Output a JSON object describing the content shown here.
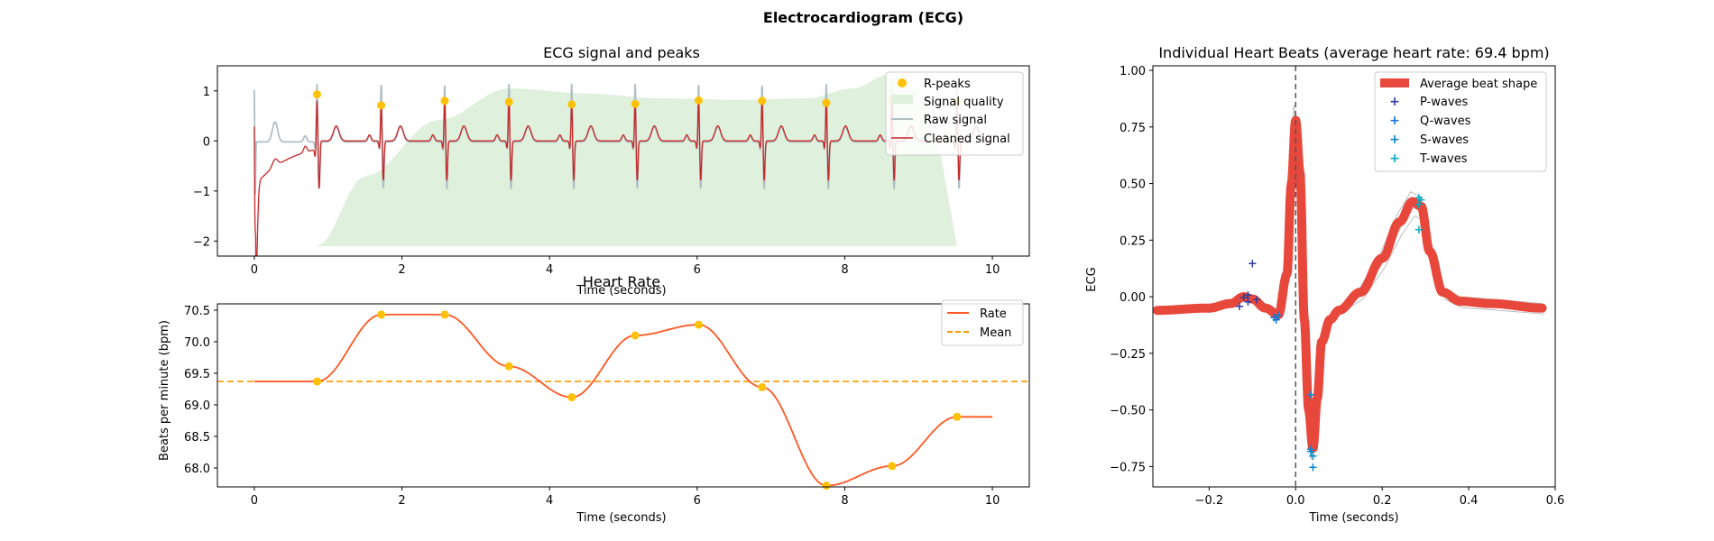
{
  "figure": {
    "suptitle": "Electrocardiogram (ECG)"
  },
  "chart_data": [
    {
      "type": "line",
      "title": "ECG signal and peaks",
      "xlabel": "Time (seconds)",
      "ylabel": "",
      "xlim": [
        -0.5,
        10.5
      ],
      "ylim": [
        -2.3,
        1.5
      ],
      "xticks": [
        0,
        2,
        4,
        6,
        8,
        10
      ],
      "yticks": [
        -2,
        -1,
        0,
        1
      ],
      "legend_position": "top-right",
      "legend": [
        "R-peaks",
        "Signal quality",
        "Raw signal",
        "Cleaned signal"
      ],
      "colors": {
        "rpeaks": "#FFC107",
        "quality": "#DFF0DC",
        "raw": "#B0BEC5",
        "cleaned": "#C62828"
      },
      "r_peaks": {
        "x": [
          0.85,
          1.72,
          2.58,
          3.45,
          4.3,
          5.16,
          6.02,
          6.88,
          7.75,
          8.64,
          9.52
        ],
        "y": [
          0.93,
          0.71,
          0.8,
          0.78,
          0.73,
          0.74,
          0.81,
          0.8,
          0.76,
          0.81,
          0.78
        ]
      },
      "signal_quality": {
        "x": [
          0.85,
          1.5,
          2.5,
          3.45,
          4.5,
          5.5,
          6.5,
          7.5,
          8.1,
          8.64,
          9.0,
          9.3,
          9.52
        ],
        "y": [
          -2.1,
          -0.7,
          0.42,
          1.05,
          0.95,
          0.85,
          0.82,
          0.85,
          1.05,
          1.35,
          1.0,
          -0.3,
          -2.1
        ]
      }
    },
    {
      "type": "line",
      "title": "Heart Rate",
      "xlabel": "Time (seconds)",
      "ylabel": "Beats per minute (bpm)",
      "xlim": [
        -0.5,
        10.5
      ],
      "ylim": [
        67.7,
        70.6
      ],
      "xticks": [
        0,
        2,
        4,
        6,
        8,
        10
      ],
      "yticks": [
        68.0,
        68.5,
        69.0,
        69.5,
        70.0,
        70.5
      ],
      "legend_position": "top-right",
      "series": [
        {
          "name": "Rate",
          "color": "#FF5722",
          "x": [
            0.85,
            1.72,
            2.58,
            3.45,
            4.3,
            5.16,
            6.02,
            6.88,
            7.75,
            8.64,
            9.52
          ],
          "y": [
            69.37,
            70.43,
            70.43,
            69.61,
            69.12,
            70.1,
            70.27,
            69.28,
            67.72,
            68.03,
            68.81
          ],
          "start_value": 69.37,
          "end_x": 10.0
        },
        {
          "name": "Mean",
          "color": "#FF9800",
          "value": 69.37,
          "style": "dashed"
        }
      ],
      "peak_marker_color": "#FFC107"
    },
    {
      "type": "line",
      "title": "Individual Heart Beats (average heart rate: 69.4 bpm)",
      "xlabel": "Time (seconds)",
      "ylabel": "ECG",
      "xlim": [
        -0.33,
        0.6
      ],
      "ylim": [
        -0.84,
        1.02
      ],
      "xticks": [
        -0.2,
        0.0,
        0.2,
        0.4,
        0.6
      ],
      "xtick_labels": [
        "−0.2",
        "0.0",
        "0.2",
        "0.4",
        "0.6"
      ],
      "yticks": [
        -0.75,
        -0.5,
        -0.25,
        0.0,
        0.25,
        0.5,
        0.75,
        1.0
      ],
      "ytick_labels": [
        "−0.75",
        "−0.50",
        "−0.25",
        "0.00",
        "0.25",
        "0.50",
        "0.75",
        "1.00"
      ],
      "legend_position": "top-right",
      "legend": [
        "Average beat shape",
        "P-waves",
        "Q-waves",
        "S-waves",
        "T-waves"
      ],
      "colors": {
        "average": "#E8473B",
        "p": "#303F9F",
        "q": "#1976D2",
        "s": "#0288D1",
        "t": "#00ACC1",
        "individual": "#BDBDBD",
        "vline": "#555555"
      },
      "average_beat": {
        "x": [
          -0.32,
          -0.2,
          -0.15,
          -0.12,
          -0.1,
          -0.07,
          -0.04,
          -0.02,
          -0.01,
          0.0,
          0.01,
          0.02,
          0.03,
          0.04,
          0.05,
          0.06,
          0.08,
          0.1,
          0.15,
          0.2,
          0.24,
          0.27,
          0.29,
          0.31,
          0.34,
          0.38,
          0.45,
          0.57
        ],
        "y": [
          -0.06,
          -0.05,
          -0.03,
          0.0,
          -0.01,
          -0.05,
          -0.08,
          0.1,
          0.5,
          0.78,
          0.55,
          -0.1,
          -0.5,
          -0.67,
          -0.45,
          -0.2,
          -0.1,
          -0.06,
          0.02,
          0.17,
          0.33,
          0.42,
          0.4,
          0.2,
          0.02,
          -0.02,
          -0.03,
          -0.05
        ]
      },
      "p_waves": {
        "x": [
          -0.13,
          -0.12,
          -0.11,
          -0.11,
          -0.1,
          -0.09
        ],
        "y": [
          -0.04,
          0.0,
          0.01,
          -0.02,
          0.15,
          -0.01
        ]
      },
      "q_waves": {
        "x": [
          -0.05,
          -0.045,
          -0.04
        ],
        "y": [
          -0.09,
          -0.1,
          -0.08
        ]
      },
      "s_waves": {
        "x": [
          0.035,
          0.035,
          0.04,
          0.04,
          0.035
        ],
        "y": [
          -0.43,
          -0.67,
          -0.7,
          -0.75,
          -0.68
        ]
      },
      "t_waves": {
        "x": [
          0.285,
          0.285,
          0.29,
          0.285
        ],
        "y": [
          0.44,
          0.41,
          0.43,
          0.3
        ]
      }
    }
  ]
}
